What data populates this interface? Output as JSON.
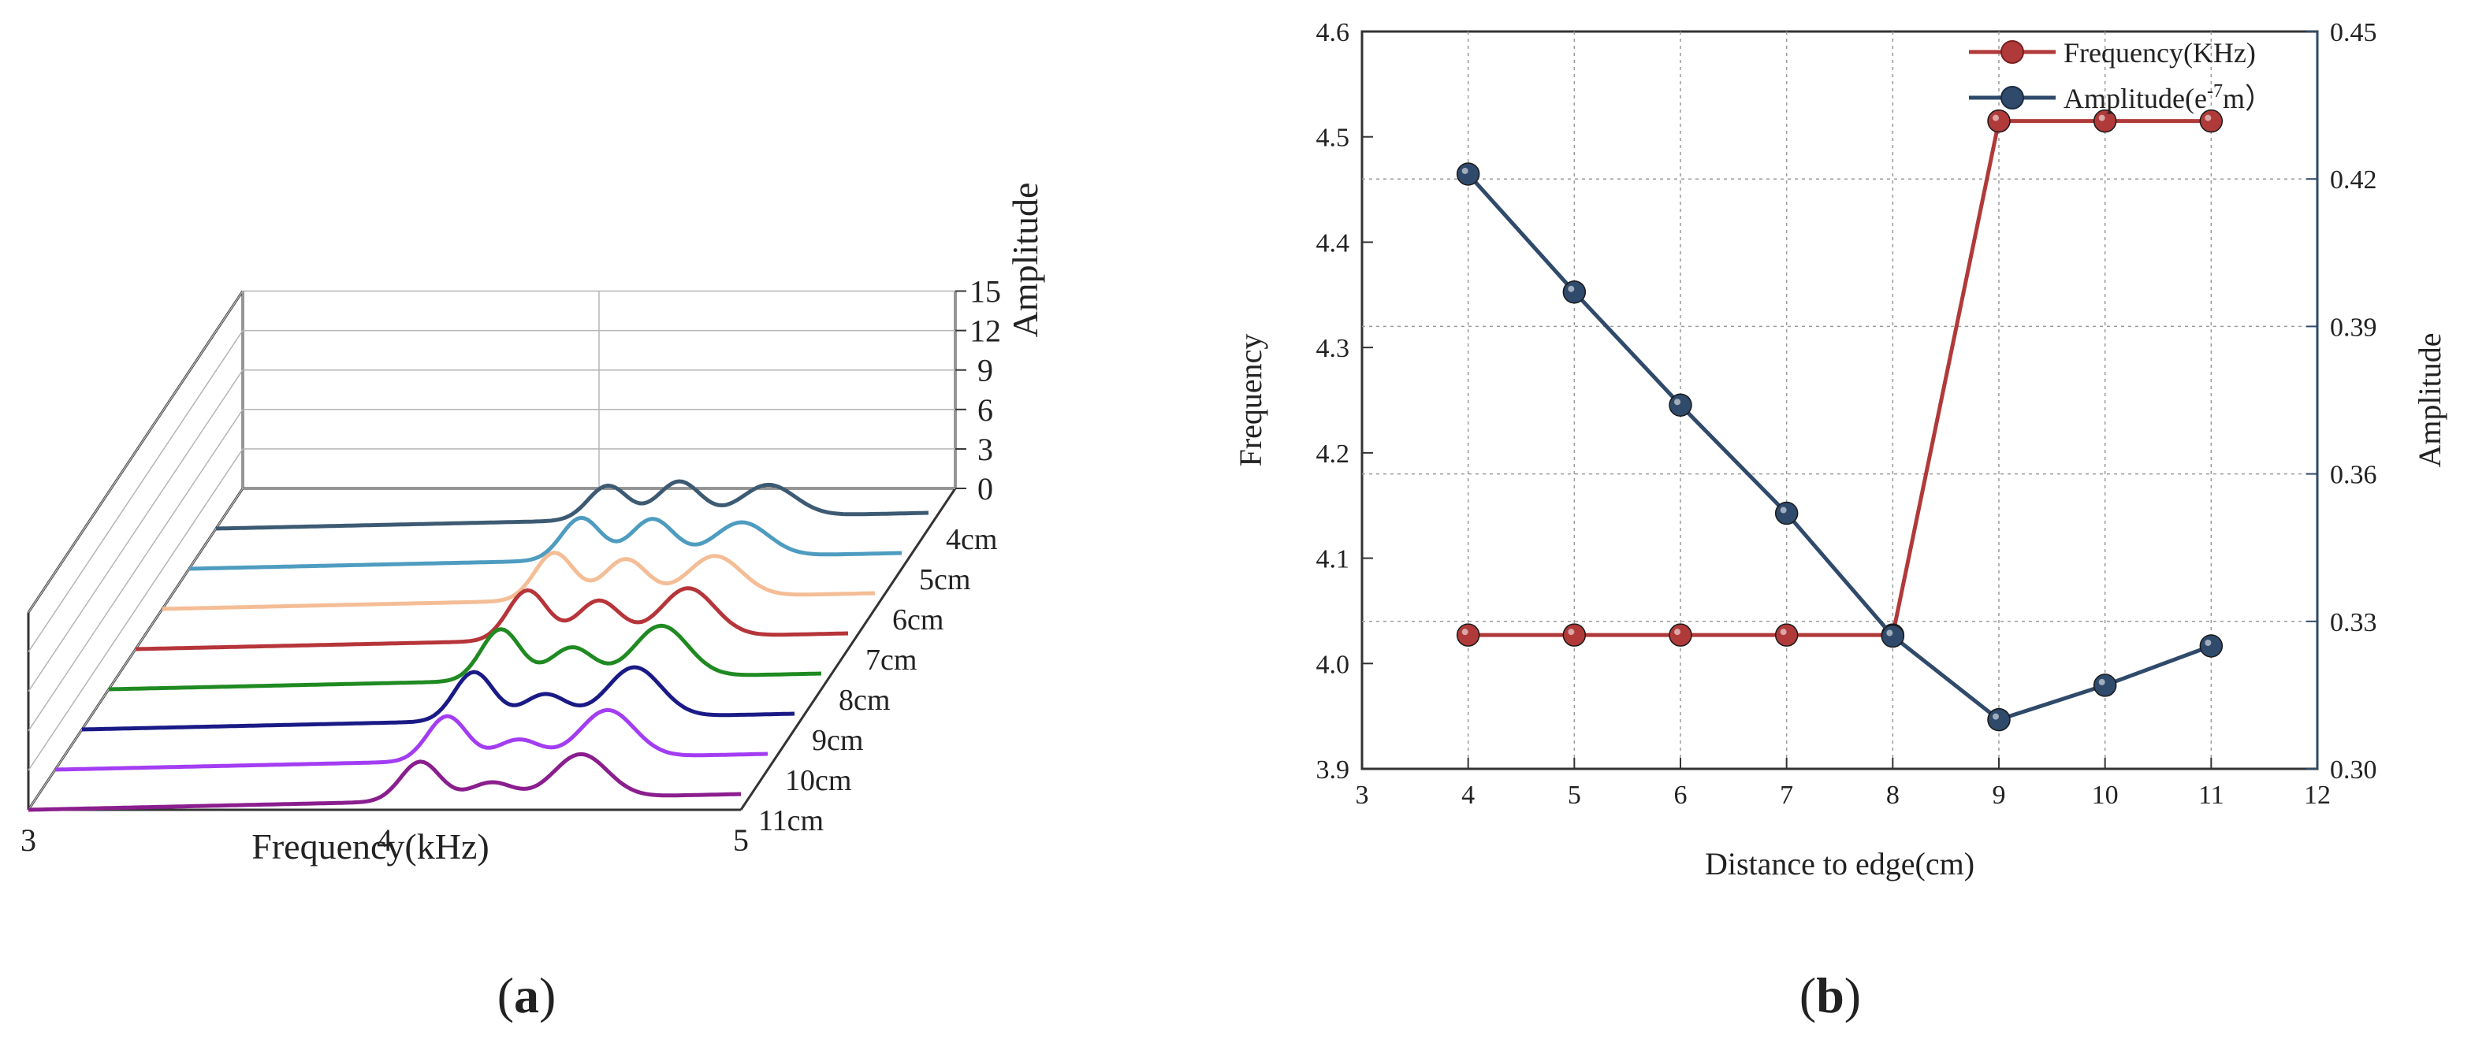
{
  "figure": {
    "caption_a": "a",
    "caption_b": "b"
  },
  "chart_data": [
    {
      "type": "line",
      "panel": "a",
      "title": "",
      "xlabel": "Frequency(kHz)",
      "zlabel": "Amplitude",
      "xlim": [
        3,
        5
      ],
      "zlim": [
        0,
        15
      ],
      "xticks": [
        "3",
        "4",
        "5"
      ],
      "zticks": [
        "0",
        "3",
        "6",
        "9",
        "12",
        "15"
      ],
      "peak_freqs_khz": [
        4.1,
        4.3,
        4.55
      ],
      "series": [
        {
          "name": "4cm",
          "color": "#3d5a73",
          "peaks": [
            2.6,
            2.8,
            2.4
          ],
          "baseline": 0.6
        },
        {
          "name": "5cm",
          "color": "#4e9cc0",
          "peaks": [
            3.2,
            3.0,
            2.6
          ],
          "baseline": 0.6
        },
        {
          "name": "6cm",
          "color": "#f4bd96",
          "peaks": [
            3.6,
            3.0,
            3.1
          ],
          "baseline": 0.6
        },
        {
          "name": "7cm",
          "color": "#b6353a",
          "peaks": [
            3.8,
            2.9,
            3.7
          ],
          "baseline": 0.6
        },
        {
          "name": "8cm",
          "color": "#208a22",
          "peaks": [
            3.9,
            2.4,
            3.9
          ],
          "baseline": 0.6
        },
        {
          "name": "9cm",
          "color": "#1a1a86",
          "peaks": [
            3.7,
            1.9,
            3.8
          ],
          "baseline": 0.6
        },
        {
          "name": "10cm",
          "color": "#a33df2",
          "peaks": [
            3.4,
            1.5,
            3.6
          ],
          "baseline": 0.6
        },
        {
          "name": "11cm",
          "color": "#8b1e8e",
          "peaks": [
            3.0,
            1.3,
            3.3
          ],
          "baseline": 0.6
        }
      ]
    },
    {
      "type": "line",
      "panel": "b",
      "title": "",
      "xlabel": "Distance to edge(cm)",
      "ylabel": "Frequency",
      "y2label": "Amplitude",
      "xlim": [
        3,
        12
      ],
      "ylim": [
        3.9,
        4.6
      ],
      "y2lim": [
        0.3,
        0.45
      ],
      "xticks": [
        "3",
        "4",
        "5",
        "6",
        "7",
        "8",
        "9",
        "10",
        "11",
        "12"
      ],
      "yticks": [
        "3.9",
        "4.0",
        "4.1",
        "4.2",
        "4.3",
        "4.4",
        "4.5",
        "4.6"
      ],
      "y2ticks": [
        "0.30",
        "0.33",
        "0.36",
        "0.39",
        "0.42",
        "0.45"
      ],
      "grid": true,
      "legend_position": "top-right",
      "x": [
        4,
        5,
        6,
        7,
        8,
        9,
        10,
        11
      ],
      "series": [
        {
          "name": "Frequency(KHz)",
          "axis": "left",
          "color": "#b03a3a",
          "values": [
            4.027,
            4.027,
            4.027,
            4.027,
            4.027,
            4.515,
            4.515,
            4.515
          ]
        },
        {
          "name": "Amplitude",
          "name_sup": "-7",
          "name_tail": "m）",
          "name_head": "Amplitude(e",
          "axis": "right",
          "color": "#2f4a6a",
          "values": [
            0.421,
            0.397,
            0.374,
            0.352,
            0.327,
            0.31,
            0.317,
            0.325
          ]
        }
      ]
    }
  ]
}
